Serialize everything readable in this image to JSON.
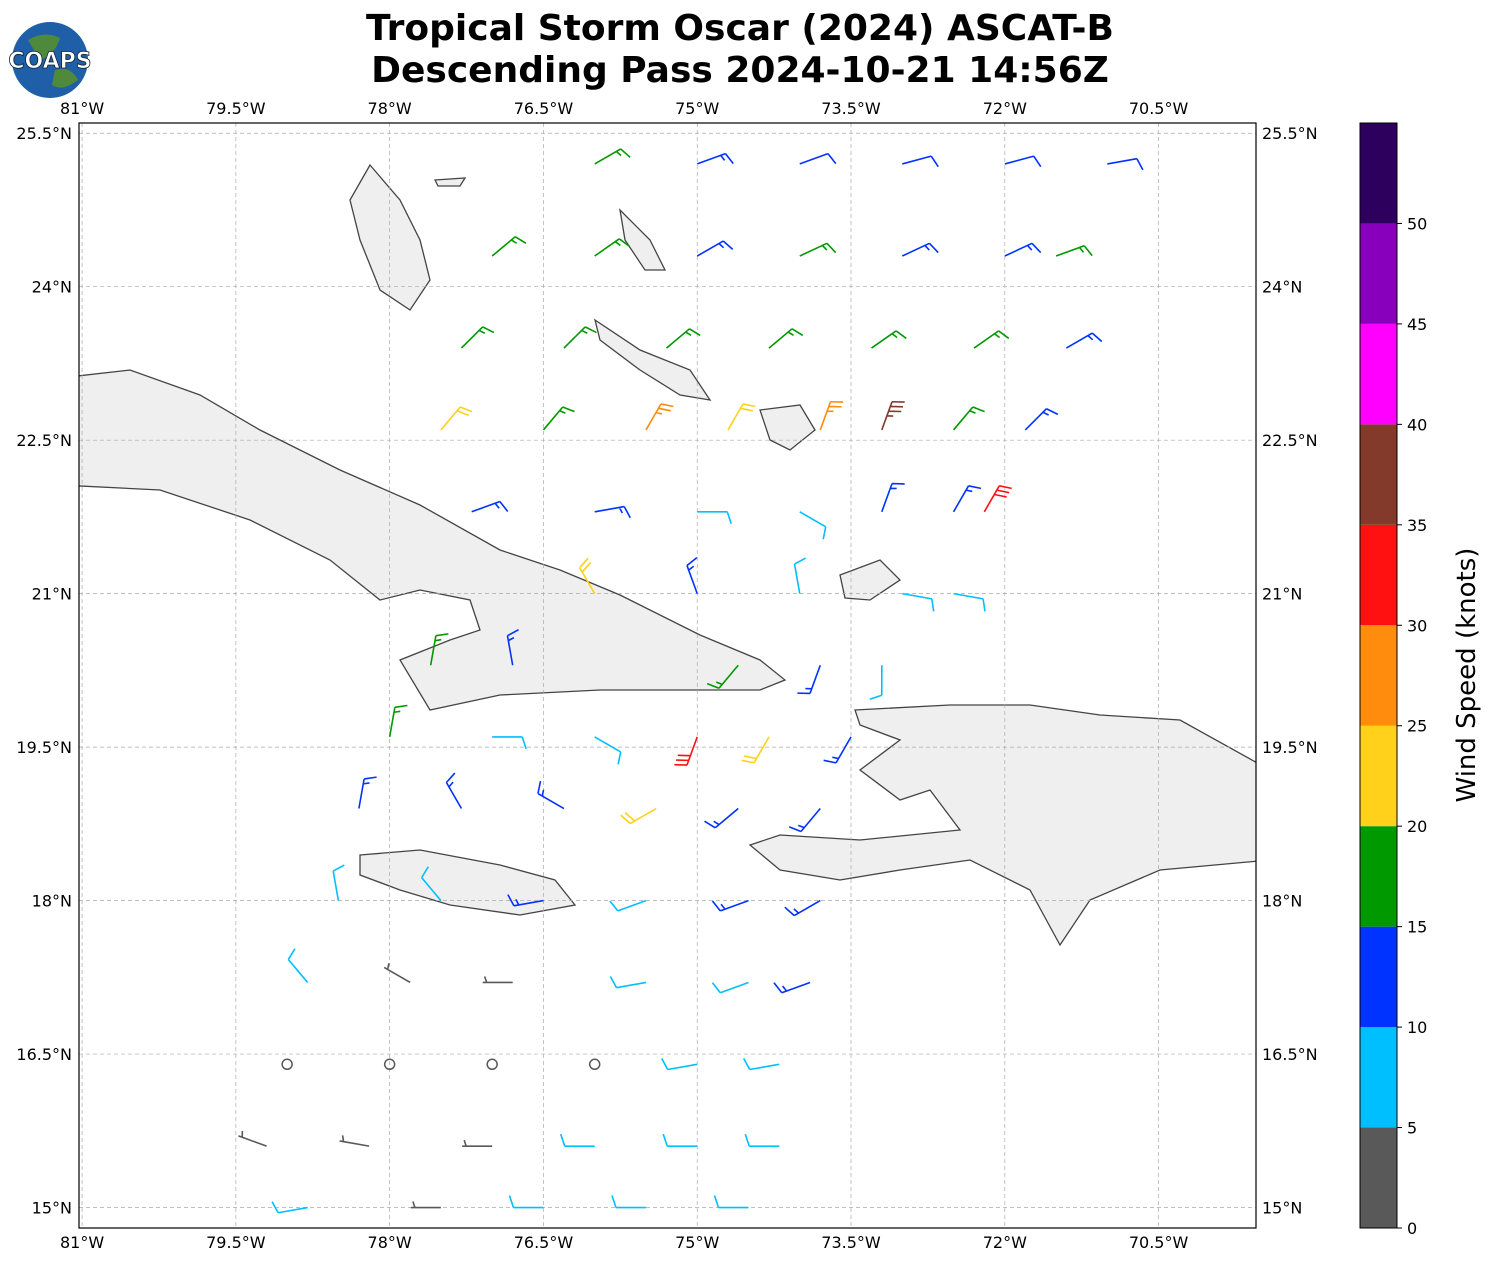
{
  "chart_data": {
    "type": "barbs",
    "title": "Tropical Storm Oscar (2024) ASCAT-B",
    "subtitle": "Descending Pass 2024-10-21 14:56Z",
    "logo": "COAPS",
    "xlim": [
      -81.03,
      -69.55
    ],
    "ylim": [
      14.8,
      25.6
    ],
    "xticks": [
      {
        "value": -81,
        "label": "81°W"
      },
      {
        "value": -79.5,
        "label": "79.5°W"
      },
      {
        "value": -78,
        "label": "78°W"
      },
      {
        "value": -76.5,
        "label": "76.5°W"
      },
      {
        "value": -75,
        "label": "75°W"
      },
      {
        "value": -73.5,
        "label": "73.5°W"
      },
      {
        "value": -72,
        "label": "72°W"
      },
      {
        "value": -70.5,
        "label": "70.5°W"
      }
    ],
    "yticks": [
      {
        "value": 25.5,
        "label": "25.5°N"
      },
      {
        "value": 24,
        "label": "24°N"
      },
      {
        "value": 22.5,
        "label": "22.5°N"
      },
      {
        "value": 21,
        "label": "21°N"
      },
      {
        "value": 19.5,
        "label": "19.5°N"
      },
      {
        "value": 18,
        "label": "18°N"
      },
      {
        "value": 16.5,
        "label": "16.5°N"
      },
      {
        "value": 15,
        "label": "15°N"
      }
    ],
    "grid": true,
    "colorbar": {
      "label": "Wind Speed (knots)",
      "levels": [
        0,
        5,
        10,
        15,
        20,
        25,
        30,
        35,
        40,
        45,
        50,
        55
      ],
      "colors": [
        "#595959",
        "#00bfff",
        "#0033ff",
        "#009900",
        "#ffd11a",
        "#ff8c0d",
        "#ff1111",
        "#833a2a",
        "#ff00ff",
        "#8800bb",
        "#2e005e"
      ],
      "ticks": [
        0,
        5,
        10,
        15,
        20,
        25,
        30,
        35,
        40,
        45,
        50
      ]
    },
    "barbs": {
      "lon": [
        -76.0,
        -75.0,
        -74.0,
        -73.0,
        -72.0,
        -71.0,
        -77.0,
        -76.0,
        -75.0,
        -74.0,
        -73.0,
        -72.0,
        -71.5,
        -77.3,
        -76.3,
        -75.3,
        -74.3,
        -73.3,
        -72.3,
        -71.4,
        -77.5,
        -76.5,
        -75.5,
        -74.7,
        -73.8,
        -73.2,
        -72.5,
        -71.8,
        -77.2,
        -76.0,
        -75.0,
        -74.0,
        -73.2,
        -72.5,
        -72.2,
        -76.0,
        -75.0,
        -74.0,
        -73.0,
        -72.5,
        -77.6,
        -76.8,
        -74.6,
        -73.8,
        -73.2,
        -78.0,
        -77.0,
        -76.0,
        -75.0,
        -74.3,
        -73.5,
        -78.3,
        -77.3,
        -76.3,
        -75.4,
        -74.6,
        -73.8,
        -78.5,
        -77.5,
        -76.5,
        -75.5,
        -74.5,
        -73.8,
        -78.8,
        -77.8,
        -76.8,
        -75.5,
        -74.5,
        -73.9,
        -79.0,
        -78.0,
        -77.0,
        -76.0,
        -75.0,
        -74.2,
        -79.2,
        -78.2,
        -77.0,
        -76.0,
        -75.0,
        -74.2,
        -78.8,
        -77.5,
        -76.5,
        -75.5,
        -74.5
      ],
      "lat": [
        25.2,
        25.2,
        25.2,
        25.2,
        25.2,
        25.2,
        24.3,
        24.3,
        24.3,
        24.3,
        24.3,
        24.3,
        24.3,
        23.4,
        23.4,
        23.4,
        23.4,
        23.4,
        23.4,
        23.4,
        22.6,
        22.6,
        22.6,
        22.6,
        22.6,
        22.6,
        22.6,
        22.6,
        21.8,
        21.8,
        21.8,
        21.8,
        21.8,
        21.8,
        21.8,
        21.0,
        21.0,
        21.0,
        21.0,
        21.0,
        20.3,
        20.3,
        20.3,
        20.3,
        20.3,
        19.6,
        19.6,
        19.6,
        19.6,
        19.6,
        19.6,
        18.9,
        18.9,
        18.9,
        18.9,
        18.9,
        18.9,
        18.0,
        18.0,
        18.0,
        18.0,
        18.0,
        18.0,
        17.2,
        17.2,
        17.2,
        17.2,
        17.2,
        17.2,
        16.4,
        16.4,
        16.4,
        16.4,
        16.4,
        16.4,
        15.6,
        15.6,
        15.6,
        15.6,
        15.6,
        15.6,
        15.0,
        15.0,
        15.0,
        15.0,
        15.0
      ],
      "speed": [
        17,
        13,
        12,
        12,
        12,
        12,
        17,
        17,
        13,
        17,
        13,
        13,
        17,
        17,
        17,
        17,
        17,
        17,
        17,
        13,
        22,
        17,
        27,
        22,
        27,
        37,
        17,
        13,
        13,
        13,
        8,
        8,
        13,
        13,
        32,
        22,
        13,
        8,
        8,
        8,
        17,
        13,
        17,
        13,
        8,
        17,
        8,
        8,
        32,
        22,
        13,
        13,
        13,
        13,
        22,
        13,
        13,
        8,
        8,
        13,
        8,
        13,
        13,
        8,
        3,
        3,
        8,
        8,
        13,
        2,
        2,
        2,
        2,
        8,
        8,
        3,
        3,
        3,
        8,
        8,
        8,
        8,
        4,
        8,
        8,
        8
      ],
      "direction": [
        60,
        70,
        70,
        75,
        75,
        80,
        50,
        55,
        60,
        65,
        65,
        65,
        70,
        45,
        45,
        50,
        50,
        55,
        55,
        60,
        40,
        40,
        30,
        30,
        20,
        20,
        40,
        45,
        70,
        80,
        90,
        120,
        20,
        30,
        30,
        330,
        340,
        350,
        100,
        100,
        10,
        350,
        220,
        200,
        180,
        10,
        90,
        120,
        200,
        210,
        210,
        10,
        330,
        300,
        240,
        230,
        220,
        350,
        320,
        260,
        250,
        250,
        240,
        320,
        300,
        270,
        260,
        250,
        250,
        0,
        0,
        0,
        0,
        260,
        260,
        290,
        280,
        270,
        270,
        270,
        270,
        260,
        270,
        270,
        270,
        270
      ]
    }
  }
}
